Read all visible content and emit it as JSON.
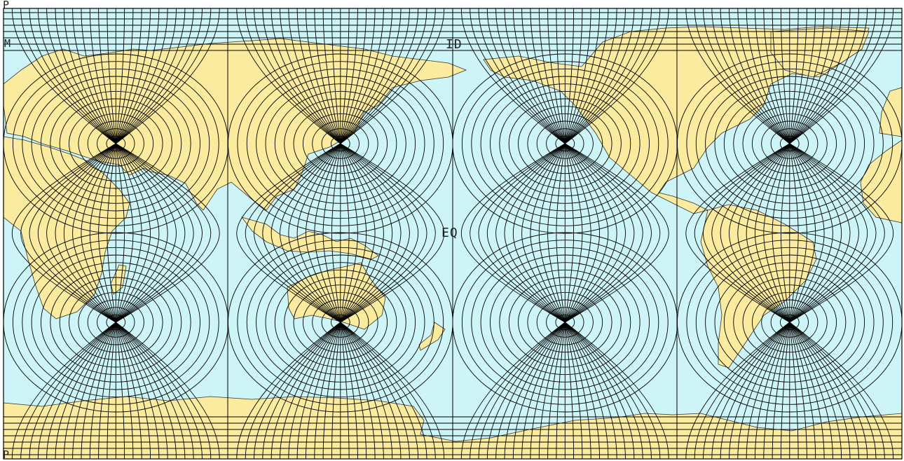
{
  "map": {
    "labels": {
      "corner_top": "P",
      "side_left": "M",
      "center_top": "ID",
      "center_mid": "EQ",
      "corner_bottom": "P"
    },
    "colors": {
      "ocean": "#cdf4f7",
      "land": "#fbeb9e",
      "grid": "#000000",
      "frame": "#000000"
    }
  }
}
